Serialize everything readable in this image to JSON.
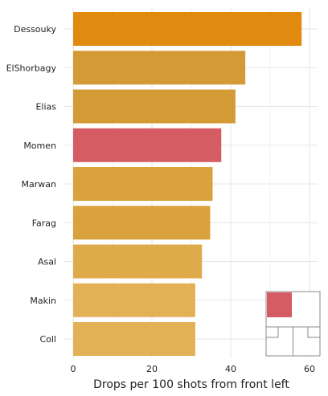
{
  "chart_data": {
    "type": "bar",
    "orientation": "horizontal",
    "categories": [
      "Dessouky",
      "ElShorbagy",
      "Elias",
      "Momen",
      "Marwan",
      "Farag",
      "Asal",
      "Makin",
      "Coll"
    ],
    "values": [
      58.0,
      43.7,
      41.2,
      37.6,
      35.4,
      34.8,
      32.7,
      31.0,
      31.0
    ],
    "colors": [
      "#E08A10",
      "#D49A35",
      "#D49A35",
      "#D55C62",
      "#DAA23E",
      "#DAA23E",
      "#DFAA4A",
      "#E3B155",
      "#E3B155"
    ],
    "highlight_category": "Momen",
    "highlight_color": "#D55C62",
    "xlabel": "Drops per 100 shots from front left",
    "ylabel": "",
    "title": "",
    "xlim": [
      0,
      62
    ],
    "xticks": [
      0,
      20,
      40,
      60
    ],
    "grid": true
  },
  "inset": {
    "icon": "squash-court-front-left-icon",
    "highlight_color": "#D55C62",
    "line_color": "#888888"
  }
}
